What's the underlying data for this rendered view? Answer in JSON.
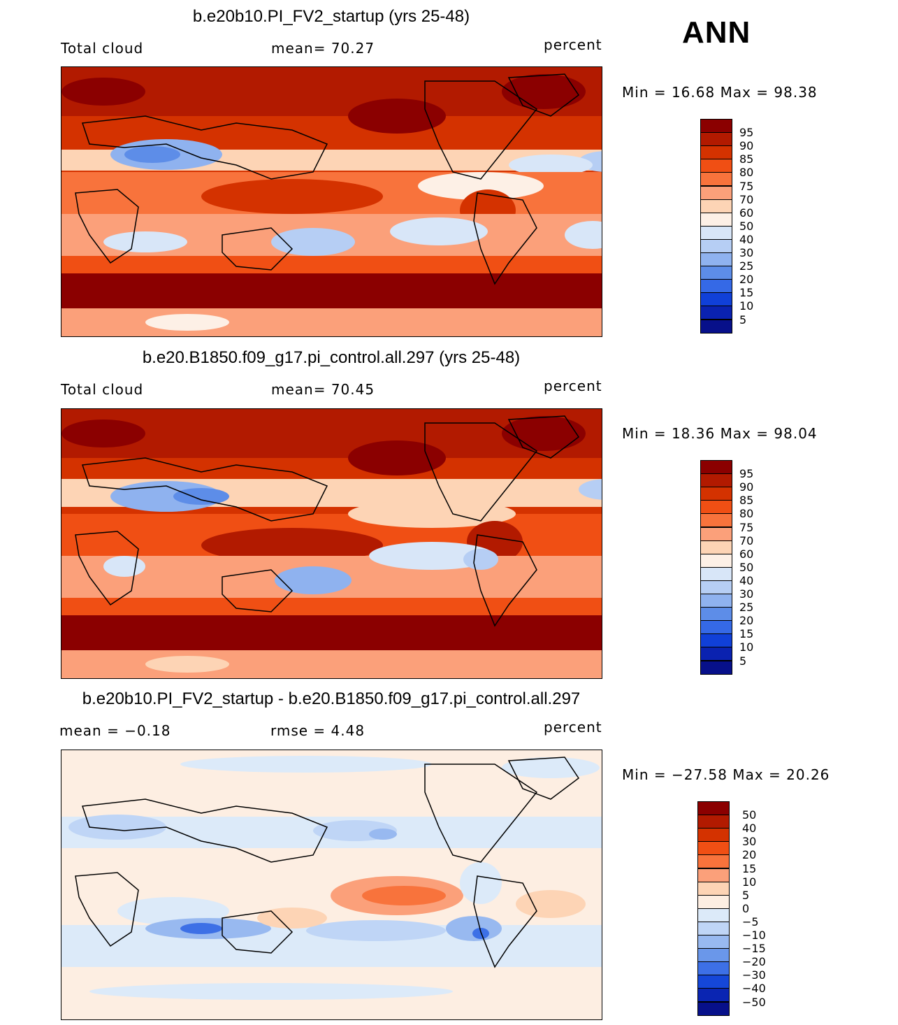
{
  "season": "ANN",
  "chart_data": [
    {
      "type": "heatmap",
      "title": "b.e20b10.PI_FV2_startup (yrs 25-48)",
      "left_label": "Total cloud",
      "center_label": "mean=   70.27",
      "units": "percent",
      "variable": "Total cloud",
      "mean": 70.27,
      "min": 16.68,
      "max": 98.38,
      "minmax_label": "Min =   16.68 Max =   98.38",
      "colorbar_levels": [
        "95",
        "90",
        "85",
        "80",
        "75",
        "70",
        "60",
        "50",
        "40",
        "30",
        "25",
        "20",
        "15",
        "10",
        "5"
      ],
      "colorbar_colors": [
        "#8b0000",
        "#b21a00",
        "#d43200",
        "#f04f14",
        "#f8733c",
        "#fba07a",
        "#fdd4b5",
        "#fdf0e6",
        "#d8e6f8",
        "#b6cef4",
        "#8fb2ef",
        "#5d8de8",
        "#3569e6",
        "#1040d8",
        "#0a22b0",
        "#07108a"
      ]
    },
    {
      "type": "heatmap",
      "title": "b.e20.B1850.f09_g17.pi_control.all.297 (yrs 25-48)",
      "left_label": "Total cloud",
      "center_label": "mean=   70.45",
      "units": "percent",
      "variable": "Total cloud",
      "mean": 70.45,
      "min": 18.36,
      "max": 98.04,
      "minmax_label": "Min =   18.36 Max =   98.04",
      "colorbar_levels": [
        "95",
        "90",
        "85",
        "80",
        "75",
        "70",
        "60",
        "50",
        "40",
        "30",
        "25",
        "20",
        "15",
        "10",
        "5"
      ],
      "colorbar_colors": [
        "#8b0000",
        "#b21a00",
        "#d43200",
        "#f04f14",
        "#f8733c",
        "#fba07a",
        "#fdd4b5",
        "#fdf0e6",
        "#d8e6f8",
        "#b6cef4",
        "#8fb2ef",
        "#5d8de8",
        "#3569e6",
        "#1040d8",
        "#0a22b0",
        "#07108a"
      ]
    },
    {
      "type": "heatmap",
      "title": "b.e20b10.PI_FV2_startup - b.e20.B1850.f09_g17.pi_control.all.297",
      "left_label": "mean =   −0.18",
      "center_label": "rmse =    4.48",
      "units": "percent",
      "mean": -0.18,
      "rmse": 4.48,
      "min": -27.58,
      "max": 20.26,
      "minmax_label": "Min = −27.58 Max =   20.26",
      "colorbar_levels": [
        "50",
        "40",
        "30",
        "20",
        "15",
        "10",
        "5",
        "0",
        "−5",
        "−10",
        "−15",
        "−20",
        "−30",
        "−40",
        "−50"
      ],
      "colorbar_colors": [
        "#8b0000",
        "#b21a00",
        "#d43200",
        "#f04f14",
        "#f8733c",
        "#fba07a",
        "#fdd4b5",
        "#fdeee2",
        "#dceaf9",
        "#bfd5f6",
        "#98b9f0",
        "#6a97ea",
        "#3d70e6",
        "#1547d8",
        "#0a25b2",
        "#07108a"
      ]
    }
  ]
}
